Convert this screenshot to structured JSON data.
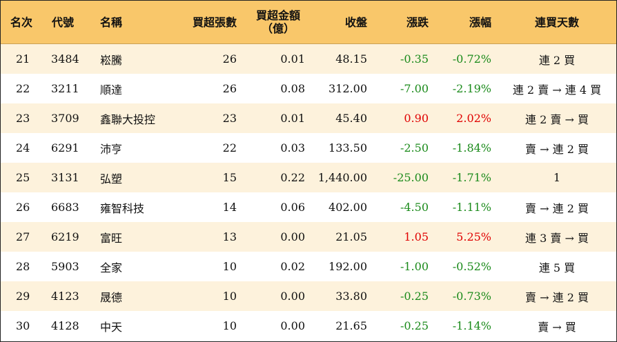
{
  "columns": {
    "rank": "名次",
    "code": "代號",
    "name": "名稱",
    "lots": "買超張數",
    "amount_line1": "買超金額",
    "amount_line2": "（億）",
    "close": "收盤",
    "change": "漲跌",
    "pct": "漲幅",
    "streak": "連買天數"
  },
  "colors": {
    "header_bg": "#f9c76a",
    "row_alt_bg": "#fdf2dc",
    "up": "#e00000",
    "down": "#1a8a1a"
  },
  "rows": [
    {
      "rank": "21",
      "code": "3484",
      "name": "崧騰",
      "lots": "26",
      "amount": "0.01",
      "close": "48.15",
      "change": "-0.35",
      "pct": "-0.72%",
      "dir": "neg",
      "streak": "連 2 買"
    },
    {
      "rank": "22",
      "code": "3211",
      "name": "順達",
      "lots": "26",
      "amount": "0.08",
      "close": "312.00",
      "change": "-7.00",
      "pct": "-2.19%",
      "dir": "neg",
      "streak": "連 2 賣 → 連 4 買"
    },
    {
      "rank": "23",
      "code": "3709",
      "name": "鑫聯大投控",
      "lots": "23",
      "amount": "0.01",
      "close": "45.40",
      "change": "0.90",
      "pct": "2.02%",
      "dir": "pos",
      "streak": "連 2 賣 → 買"
    },
    {
      "rank": "24",
      "code": "6291",
      "name": "沛亨",
      "lots": "22",
      "amount": "0.03",
      "close": "133.50",
      "change": "-2.50",
      "pct": "-1.84%",
      "dir": "neg",
      "streak": "賣 → 連 2 買"
    },
    {
      "rank": "25",
      "code": "3131",
      "name": "弘塑",
      "lots": "15",
      "amount": "0.22",
      "close": "1,440.00",
      "change": "-25.00",
      "pct": "-1.71%",
      "dir": "neg",
      "streak": "1"
    },
    {
      "rank": "26",
      "code": "6683",
      "name": "雍智科技",
      "lots": "14",
      "amount": "0.06",
      "close": "402.00",
      "change": "-4.50",
      "pct": "-1.11%",
      "dir": "neg",
      "streak": "賣 → 連 2 買"
    },
    {
      "rank": "27",
      "code": "6219",
      "name": "富旺",
      "lots": "13",
      "amount": "0.00",
      "close": "21.05",
      "change": "1.05",
      "pct": "5.25%",
      "dir": "pos",
      "streak": "連 3 賣 → 買"
    },
    {
      "rank": "28",
      "code": "5903",
      "name": "全家",
      "lots": "10",
      "amount": "0.02",
      "close": "192.00",
      "change": "-1.00",
      "pct": "-0.52%",
      "dir": "neg",
      "streak": "連 5 買"
    },
    {
      "rank": "29",
      "code": "4123",
      "name": "晟德",
      "lots": "10",
      "amount": "0.00",
      "close": "33.80",
      "change": "-0.25",
      "pct": "-0.73%",
      "dir": "neg",
      "streak": "賣 → 連 2 買"
    },
    {
      "rank": "30",
      "code": "4128",
      "name": "中天",
      "lots": "10",
      "amount": "0.00",
      "close": "21.65",
      "change": "-0.25",
      "pct": "-1.14%",
      "dir": "neg",
      "streak": "賣 → 買"
    }
  ]
}
